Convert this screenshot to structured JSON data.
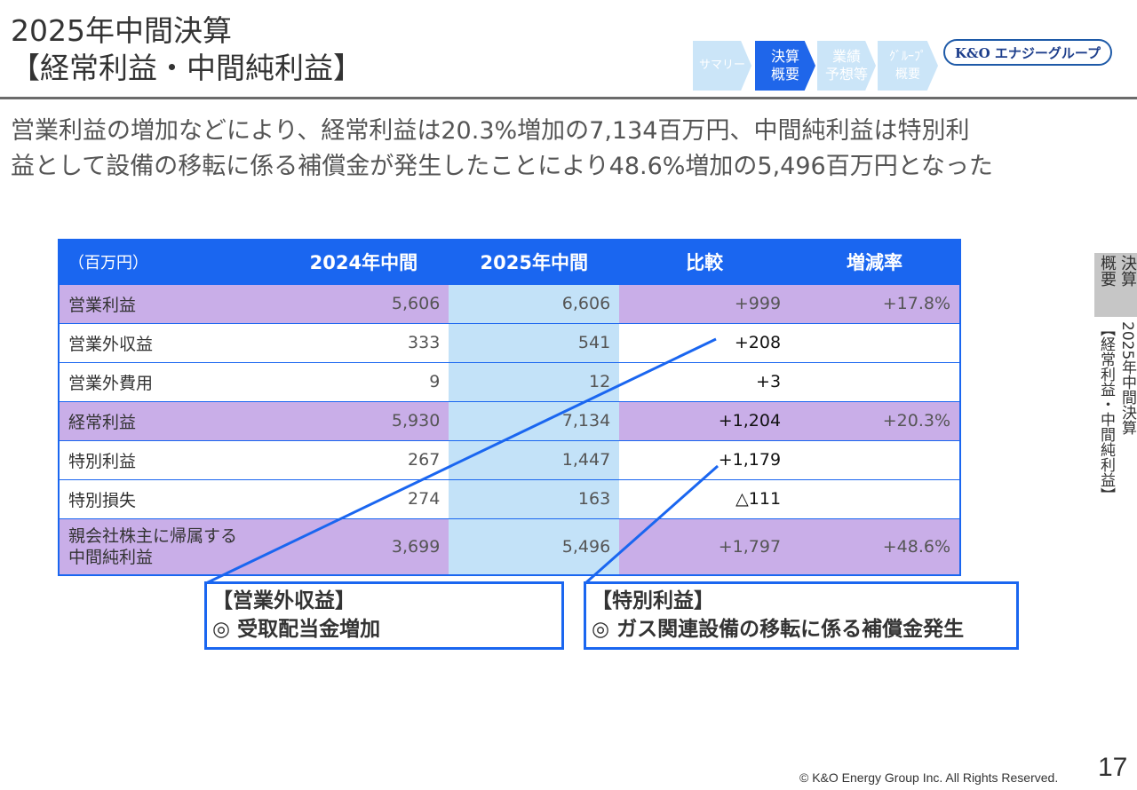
{
  "header": {
    "title_line1": "2025年中間決算",
    "title_line2": "【経常利益・中間純利益】"
  },
  "nav": {
    "steps": [
      {
        "lines": [
          "サマリー"
        ],
        "active": false
      },
      {
        "lines": [
          "決算",
          "概要"
        ],
        "active": true
      },
      {
        "lines": [
          "業績",
          "予想等"
        ],
        "active": false
      },
      {
        "lines": [
          "ｸﾞﾙｰﾌﾟ",
          "概要"
        ],
        "active": false
      }
    ]
  },
  "logo": {
    "text": "K&O エナジーグループ"
  },
  "lead": {
    "line1": "営業利益の増加などにより、経常利益は20.3%増加の7,134百万円、中間純利益は特別利",
    "line2": "益として設備の移転に係る補償金が発生したことにより48.6%増加の5,496百万円となった"
  },
  "table": {
    "headers": [
      "（百万円）",
      "2024年中間",
      "2025年中間",
      "比較",
      "増減率"
    ],
    "rows": [
      {
        "label": "営業利益",
        "y2024": "5,606",
        "y2025": "6,606",
        "diff": "+999",
        "rate": "+17.8%",
        "highlight": true
      },
      {
        "label": "営業外収益",
        "y2024": "333",
        "y2025": "541",
        "diff": "+208",
        "rate": "",
        "highlight": false
      },
      {
        "label": "営業外費用",
        "y2024": "9",
        "y2025": "12",
        "diff": "+3",
        "rate": "",
        "highlight": false
      },
      {
        "label": "経常利益",
        "y2024": "5,930",
        "y2025": "7,134",
        "diff": "+1,204",
        "rate": "+20.3%",
        "highlight": true
      },
      {
        "label": "特別利益",
        "y2024": "267",
        "y2025": "1,447",
        "diff": "+1,179",
        "rate": "",
        "highlight": false
      },
      {
        "label": "特別損失",
        "y2024": "274",
        "y2025": "163",
        "diff": "△111",
        "rate": "",
        "highlight": false
      },
      {
        "label_line1": "親会社株主に帰属する",
        "label_line2": "中間純利益",
        "y2024": "3,699",
        "y2025": "5,496",
        "diff": "+1,797",
        "rate": "+48.6%",
        "highlight": true
      }
    ]
  },
  "callouts": {
    "nonop": {
      "title": "【営業外収益】",
      "body": "◎ 受取配当金増加"
    },
    "special": {
      "title": "【特別利益】",
      "body": "◎ ガス関連設備の移転に係る補償金発生"
    }
  },
  "side": {
    "tab_col1": "決算",
    "tab_col2": "概要",
    "title_col1": "2025年中間決算",
    "title_col2": "【経常利益・中間純利益】"
  },
  "footer": {
    "copyright": "© K&O Energy Group Inc. All Rights Reserved.",
    "page": "17"
  },
  "colors": {
    "accent_blue": "#1a66f0",
    "highlight_purple": "#c9aee8",
    "column_2025": "#c3e2f8"
  }
}
